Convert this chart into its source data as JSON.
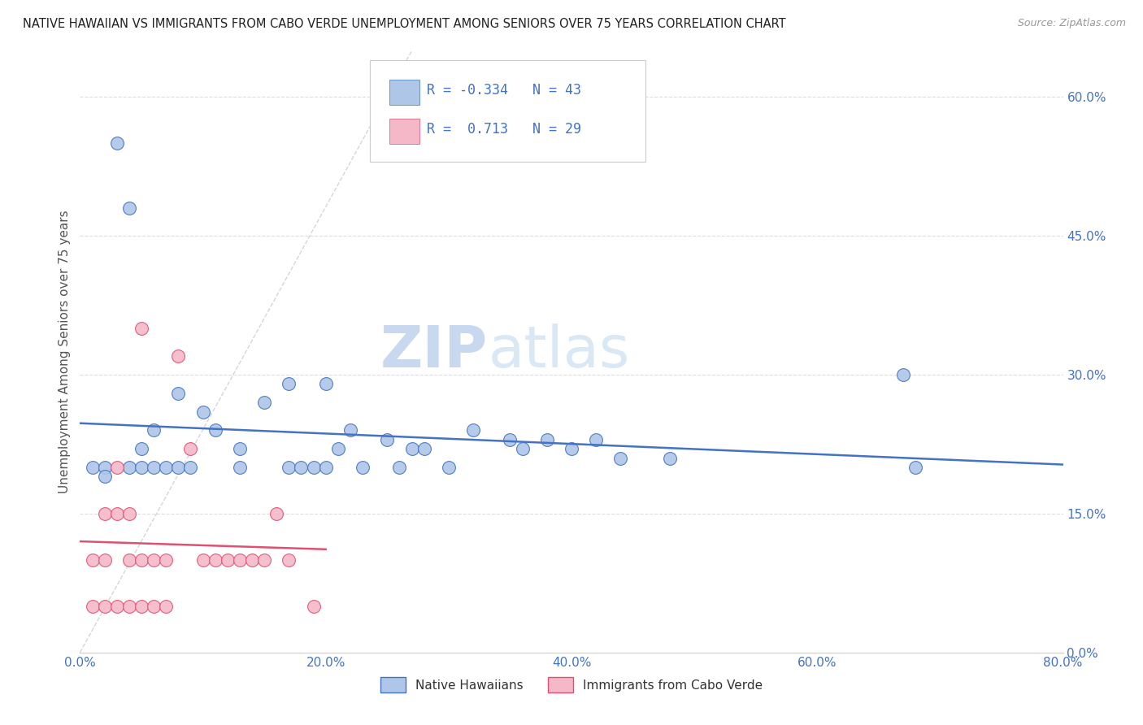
{
  "title": "NATIVE HAWAIIAN VS IMMIGRANTS FROM CABO VERDE UNEMPLOYMENT AMONG SENIORS OVER 75 YEARS CORRELATION CHART",
  "source": "Source: ZipAtlas.com",
  "ylabel": "Unemployment Among Seniors over 75 years",
  "xlim": [
    0.0,
    0.8
  ],
  "ylim": [
    0.0,
    0.65
  ],
  "xticks": [
    0.0,
    0.2,
    0.4,
    0.6,
    0.8
  ],
  "yticks": [
    0.0,
    0.15,
    0.3,
    0.45,
    0.6
  ],
  "xtick_labels": [
    "0.0%",
    "20.0%",
    "40.0%",
    "60.0%",
    "80.0%"
  ],
  "ytick_labels": [
    "0.0%",
    "15.0%",
    "30.0%",
    "45.0%",
    "60.0%"
  ],
  "native_hawaiian_color": "#aec6e8",
  "cabo_verde_color": "#f5b8c8",
  "native_hawaiian_R": -0.334,
  "native_hawaiian_N": 43,
  "cabo_verde_R": 0.713,
  "cabo_verde_N": 29,
  "trendline_hawaii_color": "#4472c4",
  "trendline_cabo_color": "#e05070",
  "watermark_zip": "ZIP",
  "watermark_atlas": "atlas",
  "native_hawaiians_x": [
    0.01,
    0.02,
    0.02,
    0.03,
    0.04,
    0.04,
    0.05,
    0.05,
    0.06,
    0.06,
    0.07,
    0.08,
    0.08,
    0.09,
    0.1,
    0.11,
    0.13,
    0.13,
    0.15,
    0.17,
    0.17,
    0.18,
    0.19,
    0.2,
    0.2,
    0.21,
    0.22,
    0.23,
    0.25,
    0.26,
    0.27,
    0.28,
    0.3,
    0.32,
    0.35,
    0.36,
    0.38,
    0.4,
    0.42,
    0.44,
    0.48,
    0.67,
    0.68
  ],
  "native_hawaiians_y": [
    0.2,
    0.2,
    0.19,
    0.55,
    0.2,
    0.48,
    0.2,
    0.22,
    0.2,
    0.24,
    0.2,
    0.2,
    0.28,
    0.2,
    0.26,
    0.24,
    0.2,
    0.22,
    0.27,
    0.2,
    0.29,
    0.2,
    0.2,
    0.29,
    0.2,
    0.22,
    0.24,
    0.2,
    0.23,
    0.2,
    0.22,
    0.22,
    0.2,
    0.24,
    0.23,
    0.22,
    0.23,
    0.22,
    0.23,
    0.21,
    0.21,
    0.3,
    0.2
  ],
  "cabo_verde_x": [
    0.01,
    0.01,
    0.02,
    0.02,
    0.02,
    0.03,
    0.03,
    0.03,
    0.04,
    0.04,
    0.04,
    0.05,
    0.05,
    0.05,
    0.06,
    0.06,
    0.07,
    0.07,
    0.08,
    0.09,
    0.1,
    0.11,
    0.12,
    0.13,
    0.14,
    0.15,
    0.16,
    0.17,
    0.19
  ],
  "cabo_verde_y": [
    0.05,
    0.1,
    0.05,
    0.1,
    0.15,
    0.05,
    0.15,
    0.2,
    0.05,
    0.1,
    0.15,
    0.05,
    0.1,
    0.35,
    0.05,
    0.1,
    0.05,
    0.1,
    0.32,
    0.22,
    0.1,
    0.1,
    0.1,
    0.1,
    0.1,
    0.1,
    0.15,
    0.1,
    0.05
  ],
  "legend_label_hawaii": "Native Hawaiians",
  "legend_label_cabo": "Immigrants from Cabo Verde",
  "title_color": "#222222",
  "tick_color": "#4472c4",
  "dash_line_color": "#cccccc",
  "grid_color": "#dddddd"
}
